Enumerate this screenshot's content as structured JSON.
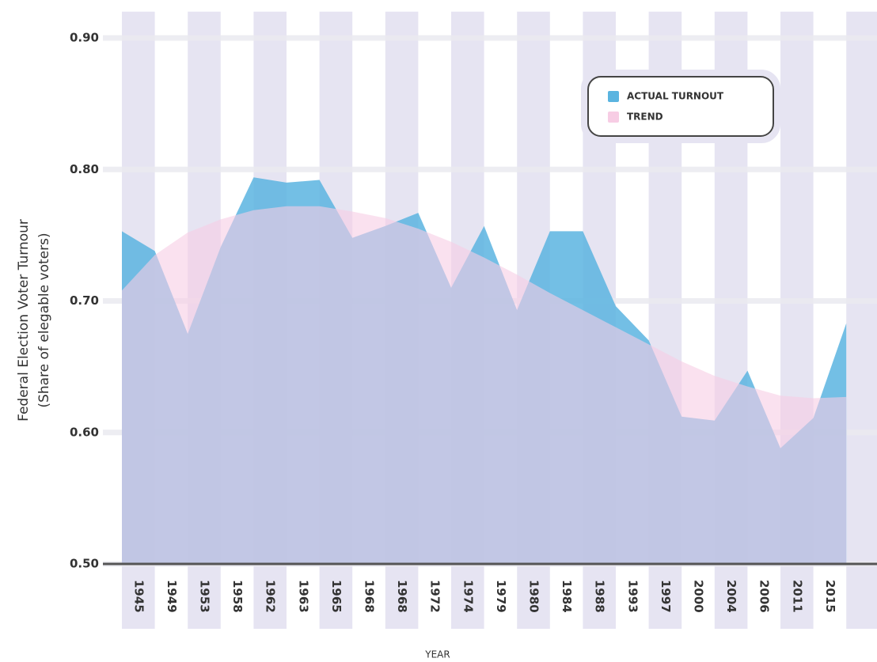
{
  "chart_data": {
    "type": "area",
    "y_label_lines": [
      "Federal Election Voter Turnour",
      "(Share of elegable voters)"
    ],
    "x_label": "YEAR",
    "categories": [
      "1945",
      "1949",
      "1953",
      "1958",
      "1962",
      "1963",
      "1965",
      "1968",
      "1968",
      "1972",
      "1974",
      "1979",
      "1980",
      "1984",
      "1988",
      "1993",
      "1997",
      "2000",
      "2004",
      "2006",
      "2011",
      "2015",
      null
    ],
    "series": [
      {
        "name": "ACTUAL TURNOUT",
        "color": "#5ab4e0",
        "values": [
          0.753,
          0.738,
          0.675,
          0.741,
          0.794,
          0.79,
          0.792,
          0.748,
          0.757,
          0.767,
          0.71,
          0.757,
          0.693,
          0.753,
          0.753,
          0.696,
          0.67,
          0.612,
          0.609,
          0.647,
          0.588,
          0.611,
          0.683
        ]
      },
      {
        "name": "TREND",
        "color": "#f7cde4",
        "values": [
          0.708,
          0.735,
          0.752,
          0.762,
          0.769,
          0.772,
          0.772,
          0.768,
          0.763,
          0.755,
          0.745,
          0.733,
          0.72,
          0.706,
          0.693,
          0.68,
          0.667,
          0.654,
          0.643,
          0.635,
          0.628,
          0.626,
          0.627
        ]
      }
    ],
    "ylim": [
      0.5,
      0.92
    ],
    "yticks": [
      {
        "value": 0.5,
        "label": "0.50"
      },
      {
        "value": 0.6,
        "label": "0.60"
      },
      {
        "value": 0.7,
        "label": "0.70"
      },
      {
        "value": 0.8,
        "label": "0.80"
      },
      {
        "value": 0.9,
        "label": "0.90"
      }
    ],
    "grid": true
  }
}
